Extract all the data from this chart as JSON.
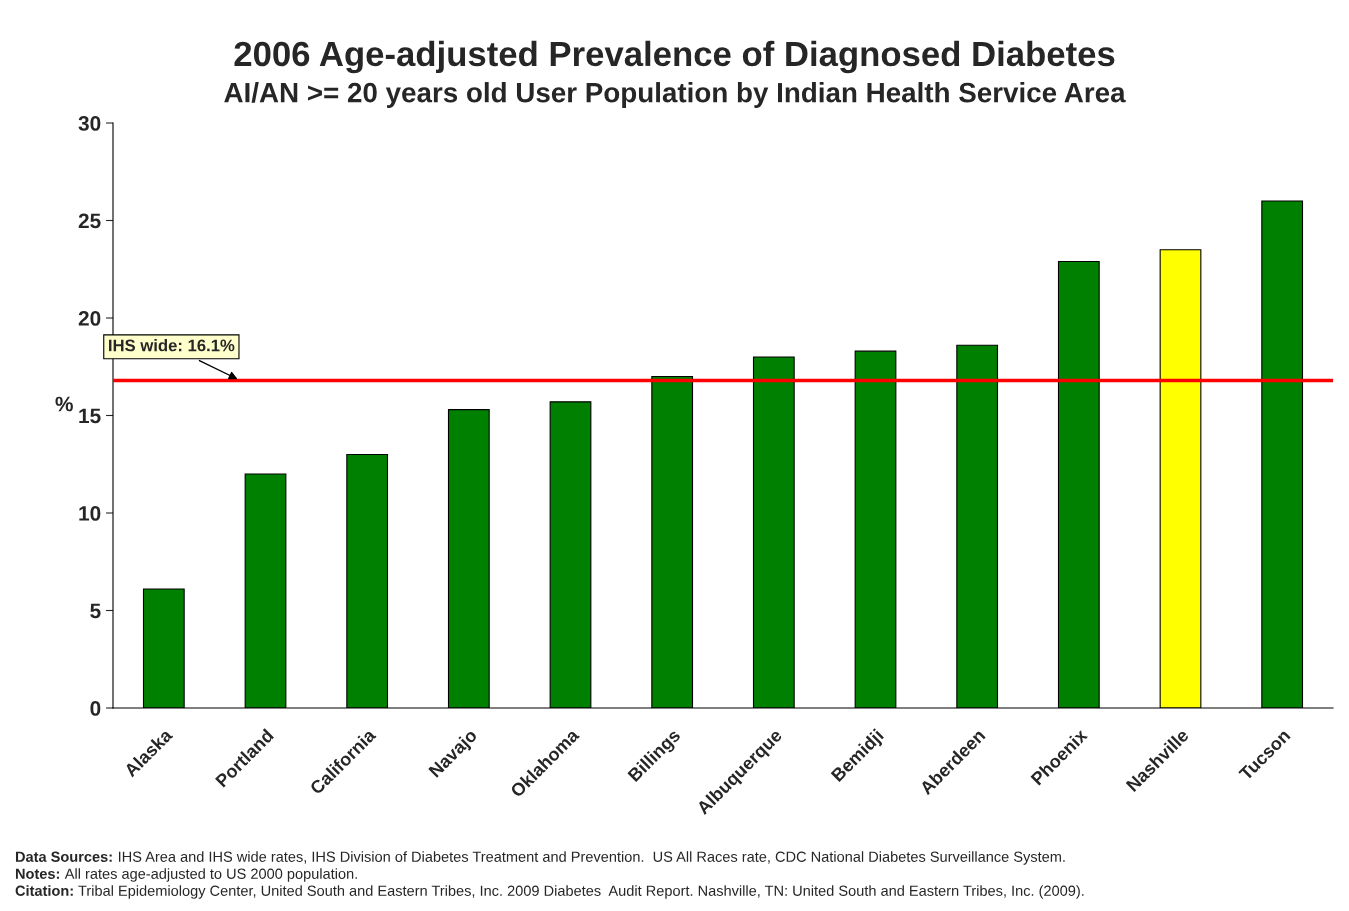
{
  "chart_data": {
    "type": "bar",
    "title": "2006 Age-adjusted Prevalence of Diagnosed Diabetes",
    "subtitle": "AI/AN >= 20 years old User Population by Indian Health Service Area",
    "ylabel": "%",
    "categories": [
      "Alaska",
      "Portland",
      "California",
      "Navajo",
      "Oklahoma",
      "Billings",
      "Albuquerque",
      "Bemidji",
      "Aberdeen",
      "Phoenix",
      "Nashville",
      "Tucson"
    ],
    "values": [
      6.1,
      12.0,
      13.0,
      15.3,
      15.7,
      17.0,
      18.0,
      18.3,
      18.6,
      22.9,
      23.5,
      26.0
    ],
    "colors": [
      "#008000",
      "#008000",
      "#008000",
      "#008000",
      "#008000",
      "#008000",
      "#008000",
      "#008000",
      "#008000",
      "#008000",
      "#ffff00",
      "#008000"
    ],
    "ylim": [
      0,
      30
    ],
    "yticks": [
      0,
      5,
      10,
      15,
      20,
      25,
      30
    ],
    "grid": false,
    "ref_lines": [
      {
        "axis": "y",
        "value": 16.8,
        "color": "#ff0000"
      }
    ],
    "annotations": [
      {
        "text": "IHS wide: 16.1%",
        "y": 16.8
      },
      "Data Sources: IHS Area and IHS wide rates, IHS Division of Diabetes Treatment and Prevention.  US All Races rate, CDC National Diabetes Surveillance System.",
      "Notes: All rates age-adjusted to US 2000 population.",
      "Citation: Tribal Epidemiology Center, United South and Eastern Tribes, Inc. 2009 Diabetes  Audit Report. Nashville, TN: United South and Eastern Tribes, Inc. (2009)."
    ]
  }
}
